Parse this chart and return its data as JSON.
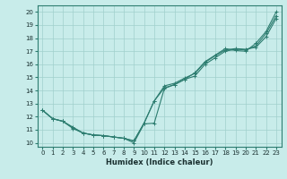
{
  "xlabel": "Humidex (Indice chaleur)",
  "xlim": [
    -0.5,
    23.5
  ],
  "ylim": [
    9.7,
    20.5
  ],
  "xticks": [
    0,
    1,
    2,
    3,
    4,
    5,
    6,
    7,
    8,
    9,
    10,
    11,
    12,
    13,
    14,
    15,
    16,
    17,
    18,
    19,
    20,
    21,
    22,
    23
  ],
  "yticks": [
    10,
    11,
    12,
    13,
    14,
    15,
    16,
    17,
    18,
    19,
    20
  ],
  "bg_color": "#c8ecea",
  "grid_color": "#a0d0cc",
  "line_color": "#2d7d70",
  "line1_x": [
    0,
    1,
    2,
    3,
    4,
    5,
    6,
    7,
    8,
    9,
    10,
    11,
    12,
    13,
    14,
    15,
    16,
    17,
    18,
    19,
    20,
    21,
    22,
    23
  ],
  "line1_y": [
    12.5,
    11.85,
    11.65,
    11.2,
    10.75,
    10.6,
    10.55,
    10.45,
    10.35,
    10.15,
    11.5,
    13.2,
    14.2,
    14.45,
    14.85,
    15.1,
    16.0,
    16.5,
    17.0,
    17.15,
    17.1,
    17.4,
    18.35,
    19.7
  ],
  "line2_x": [
    0,
    1,
    2,
    3,
    4,
    5,
    6,
    7,
    8,
    9,
    10,
    11,
    12,
    13,
    14,
    15,
    16,
    17,
    18,
    19,
    20,
    21,
    22,
    23
  ],
  "line2_y": [
    12.5,
    11.85,
    11.65,
    11.15,
    10.75,
    10.6,
    10.55,
    10.45,
    10.35,
    10.15,
    11.5,
    13.2,
    14.35,
    14.55,
    14.95,
    15.3,
    16.15,
    16.65,
    17.1,
    17.2,
    17.15,
    17.3,
    18.1,
    19.5
  ],
  "line3_x": [
    0,
    1,
    2,
    3,
    4,
    5,
    6,
    7,
    8,
    9,
    10,
    11,
    12,
    13,
    14,
    15,
    16,
    17,
    18,
    19,
    20,
    21,
    22,
    23
  ],
  "line3_y": [
    12.5,
    11.85,
    11.65,
    11.1,
    10.75,
    10.6,
    10.55,
    10.45,
    10.35,
    10.0,
    11.45,
    11.5,
    14.15,
    14.45,
    14.85,
    15.35,
    16.2,
    16.7,
    17.2,
    17.05,
    17.0,
    17.6,
    18.5,
    20.0
  ]
}
